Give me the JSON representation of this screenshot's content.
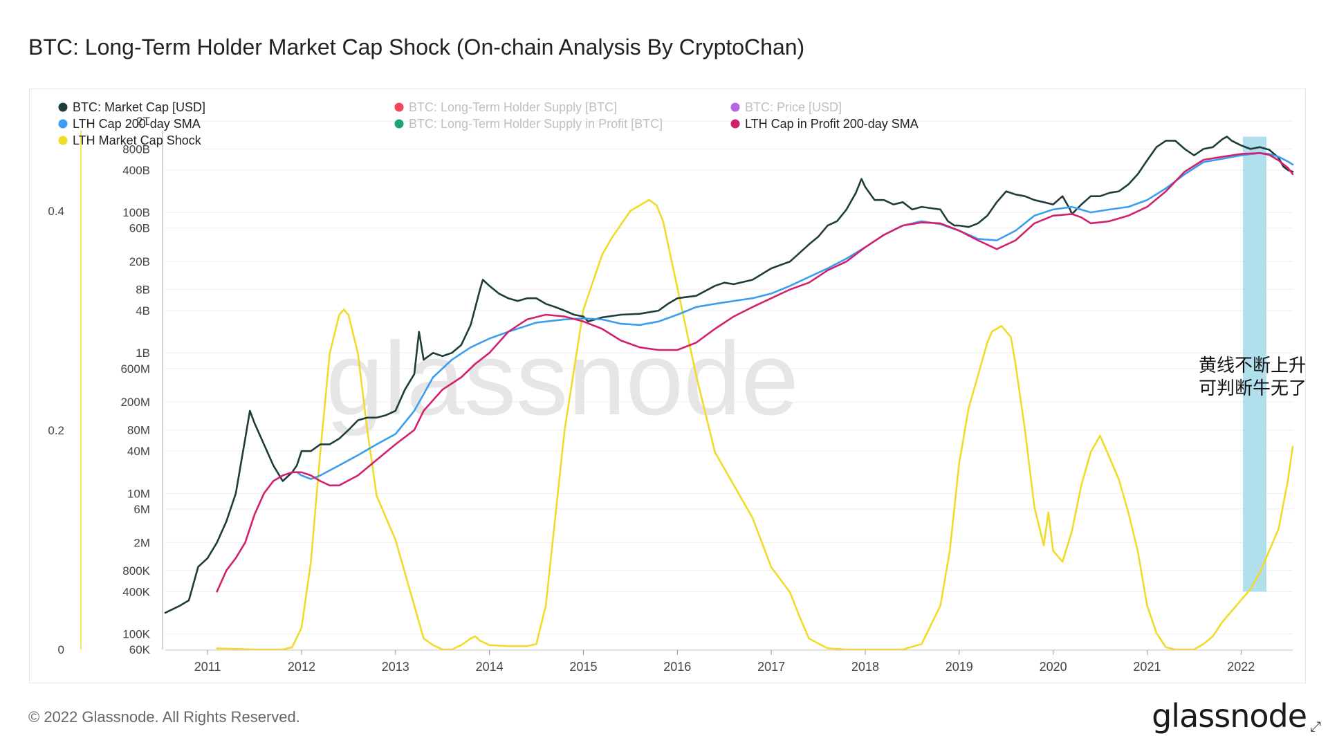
{
  "title": "BTC: Long-Term Holder Market Cap Shock (On-chain Analysis By CryptoChan)",
  "footer": "© 2022 Glassnode. All Rights Reserved.",
  "brand": "glassnode",
  "watermark": "glassnode",
  "annotation": {
    "line1": "黄线不断上升,",
    "line2": "可判断牛无了"
  },
  "legend": [
    {
      "label": "BTC: Market Cap [USD]",
      "color": "#1e3d3a",
      "active": true
    },
    {
      "label": "LTH Cap 200-day SMA",
      "color": "#3b9cf0",
      "active": true
    },
    {
      "label": "LTH Market Cap Shock",
      "color": "#f0dc28",
      "active": true
    },
    {
      "label": "BTC: Long-Term Holder Supply [BTC]",
      "color": "#f2465a",
      "active": false
    },
    {
      "label": "BTC: Long-Term Holder Supply in Profit [BTC]",
      "color": "#1ea56e",
      "active": false
    },
    {
      "label": "BTC: Price [USD]",
      "color": "#b466e6",
      "active": false
    },
    {
      "label": "LTH Cap in Profit 200-day SMA",
      "color": "#d3206e",
      "active": true
    }
  ],
  "chart_data": {
    "type": "line",
    "title": "BTC: Long-Term Holder Market Cap Shock (On-chain Analysis By CryptoChan)",
    "x_ticks": [
      2011,
      2012,
      2013,
      2014,
      2015,
      2016,
      2017,
      2018,
      2019,
      2020,
      2021,
      2022
    ],
    "x_range": [
      2010.55,
      2022.55
    ],
    "left_axis": {
      "scale": "linear",
      "ticks": [
        "0",
        "0.2",
        "0.4"
      ],
      "range": [
        0,
        0.41
      ]
    },
    "right_axis": {
      "scale": "log",
      "tick_labels": [
        "60K",
        "100K",
        "400K",
        "800K",
        "2M",
        "6M",
        "10M",
        "40M",
        "80M",
        "200M",
        "600M",
        "1B",
        "4B",
        "8B",
        "20B",
        "60B",
        "100B",
        "400B",
        "800B",
        "2T"
      ],
      "tick_values": [
        60000,
        100000,
        400000,
        800000,
        2000000,
        6000000,
        10000000,
        40000000,
        80000000,
        200000000,
        600000000,
        1000000000,
        4000000000,
        8000000000,
        20000000000,
        60000000000,
        100000000000,
        400000000000,
        800000000000,
        2000000000000
      ],
      "range": [
        60000,
        2000000000000
      ]
    },
    "highlight_band": {
      "x_start": 2022.02,
      "x_end": 2022.27,
      "value_low": 400000,
      "value_high": 1200000000000,
      "color": "#a8dcea"
    },
    "series": [
      {
        "name": "BTC: Market Cap [USD]",
        "axis": "right",
        "color": "#1e3d3a",
        "x": [
          2010.55,
          2010.7,
          2010.8,
          2010.9,
          2011.0,
          2011.1,
          2011.2,
          2011.3,
          2011.4,
          2011.45,
          2011.5,
          2011.6,
          2011.7,
          2011.8,
          2011.9,
          2011.95,
          2012.0,
          2012.1,
          2012.2,
          2012.3,
          2012.4,
          2012.5,
          2012.6,
          2012.7,
          2012.8,
          2012.9,
          2013.0,
          2013.1,
          2013.2,
          2013.25,
          2013.3,
          2013.4,
          2013.5,
          2013.6,
          2013.7,
          2013.8,
          2013.9,
          2013.93,
          2014.0,
          2014.1,
          2014.2,
          2014.3,
          2014.4,
          2014.5,
          2014.6,
          2014.7,
          2014.8,
          2014.9,
          2015.0,
          2015.05,
          2015.2,
          2015.4,
          2015.6,
          2015.8,
          2015.9,
          2016.0,
          2016.2,
          2016.4,
          2016.5,
          2016.6,
          2016.8,
          2017.0,
          2017.2,
          2017.4,
          2017.5,
          2017.6,
          2017.7,
          2017.8,
          2017.9,
          2017.96,
          2018.0,
          2018.1,
          2018.2,
          2018.3,
          2018.4,
          2018.5,
          2018.6,
          2018.7,
          2018.8,
          2018.88,
          2018.95,
          2019.0,
          2019.1,
          2019.2,
          2019.3,
          2019.4,
          2019.5,
          2019.6,
          2019.7,
          2019.8,
          2019.9,
          2020.0,
          2020.1,
          2020.18,
          2020.2,
          2020.3,
          2020.4,
          2020.5,
          2020.6,
          2020.7,
          2020.8,
          2020.9,
          2021.0,
          2021.1,
          2021.2,
          2021.3,
          2021.4,
          2021.5,
          2021.6,
          2021.7,
          2021.8,
          2021.85,
          2021.9,
          2022.0,
          2022.1,
          2022.2,
          2022.3,
          2022.4,
          2022.45,
          2022.5,
          2022.55
        ],
        "y": [
          200000,
          250000,
          300000,
          900000,
          1200000,
          2000000,
          4000000,
          10000000,
          60000000,
          150000000,
          100000000,
          50000000,
          25000000,
          15000000,
          20000000,
          25000000,
          40000000,
          40000000,
          50000000,
          50000000,
          60000000,
          80000000,
          110000000,
          120000000,
          120000000,
          130000000,
          150000000,
          300000000,
          500000000,
          2000000000,
          800000000,
          1000000000,
          900000000,
          1000000000,
          1300000000,
          2500000000,
          8000000000,
          11000000000,
          9000000000,
          7000000000,
          6000000000,
          5500000000,
          6000000000,
          6000000000,
          5000000000,
          4500000000,
          4000000000,
          3500000000,
          3300000000,
          2800000000,
          3200000000,
          3500000000,
          3600000000,
          4000000000,
          5000000000,
          6000000000,
          6500000000,
          9000000000,
          10000000000,
          9500000000,
          11000000000,
          16000000000,
          20000000000,
          35000000000,
          45000000000,
          65000000000,
          75000000000,
          110000000000,
          190000000000,
          300000000000,
          230000000000,
          150000000000,
          150000000000,
          130000000000,
          140000000000,
          110000000000,
          120000000000,
          115000000000,
          110000000000,
          75000000000,
          65000000000,
          65000000000,
          62000000000,
          70000000000,
          90000000000,
          140000000000,
          200000000000,
          180000000000,
          170000000000,
          150000000000,
          140000000000,
          130000000000,
          170000000000,
          110000000000,
          95000000000,
          130000000000,
          170000000000,
          170000000000,
          190000000000,
          200000000000,
          250000000000,
          350000000000,
          550000000000,
          850000000000,
          1050000000000,
          1050000000000,
          800000000000,
          650000000000,
          800000000000,
          850000000000,
          1100000000000,
          1200000000000,
          1050000000000,
          900000000000,
          800000000000,
          850000000000,
          780000000000,
          600000000000,
          450000000000,
          400000000000,
          380000000000
        ]
      },
      {
        "name": "LTH Cap 200-day SMA",
        "axis": "right",
        "color": "#3b9cf0",
        "x": [
          2011.95,
          2012.0,
          2012.1,
          2012.2,
          2012.4,
          2012.6,
          2012.8,
          2013.0,
          2013.2,
          2013.4,
          2013.6,
          2013.8,
          2014.0,
          2014.2,
          2014.5,
          2014.8,
          2015.0,
          2015.2,
          2015.4,
          2015.6,
          2015.8,
          2016.0,
          2016.2,
          2016.4,
          2016.6,
          2016.8,
          2017.0,
          2017.2,
          2017.4,
          2017.6,
          2017.8,
          2018.0,
          2018.2,
          2018.4,
          2018.6,
          2018.8,
          2019.0,
          2019.2,
          2019.4,
          2019.6,
          2019.8,
          2020.0,
          2020.2,
          2020.4,
          2020.6,
          2020.8,
          2021.0,
          2021.2,
          2021.4,
          2021.6,
          2021.8,
          2022.0,
          2022.2,
          2022.3,
          2022.4,
          2022.5,
          2022.55
        ],
        "y": [
          20000000,
          18000000,
          16000000,
          18000000,
          25000000,
          35000000,
          50000000,
          70000000,
          150000000,
          450000000,
          800000000,
          1200000000,
          1600000000,
          2000000000,
          2700000000,
          3000000000,
          3100000000,
          3000000000,
          2600000000,
          2500000000,
          2800000000,
          3500000000,
          4500000000,
          5000000000,
          5500000000,
          6000000000,
          7000000000,
          9000000000,
          12000000000,
          16000000000,
          22000000000,
          32000000000,
          48000000000,
          65000000000,
          75000000000,
          68000000000,
          55000000000,
          42000000000,
          40000000000,
          55000000000,
          90000000000,
          110000000000,
          120000000000,
          100000000000,
          110000000000,
          120000000000,
          150000000000,
          220000000000,
          350000000000,
          520000000000,
          580000000000,
          650000000000,
          700000000000,
          680000000000,
          620000000000,
          530000000000,
          480000000000
        ]
      },
      {
        "name": "LTH Cap in Profit 200-day SMA",
        "axis": "right",
        "color": "#d3206e",
        "x": [
          2011.1,
          2011.2,
          2011.3,
          2011.4,
          2011.5,
          2011.6,
          2011.7,
          2011.8,
          2011.9,
          2012.0,
          2012.1,
          2012.2,
          2012.3,
          2012.4,
          2012.6,
          2012.8,
          2013.0,
          2013.2,
          2013.3,
          2013.5,
          2013.7,
          2013.85,
          2014.0,
          2014.2,
          2014.4,
          2014.6,
          2014.8,
          2015.0,
          2015.2,
          2015.4,
          2015.6,
          2015.8,
          2016.0,
          2016.2,
          2016.4,
          2016.6,
          2016.8,
          2017.0,
          2017.2,
          2017.4,
          2017.6,
          2017.8,
          2018.0,
          2018.2,
          2018.4,
          2018.6,
          2018.8,
          2019.0,
          2019.2,
          2019.4,
          2019.6,
          2019.8,
          2020.0,
          2020.2,
          2020.3,
          2020.4,
          2020.6,
          2020.8,
          2021.0,
          2021.2,
          2021.4,
          2021.6,
          2021.8,
          2022.0,
          2022.2,
          2022.3,
          2022.4,
          2022.5,
          2022.55
        ],
        "y": [
          400000,
          800000,
          1200000,
          2000000,
          5000000,
          10000000,
          15000000,
          18000000,
          20000000,
          20000000,
          18000000,
          15000000,
          13000000,
          13000000,
          18000000,
          30000000,
          50000000,
          80000000,
          150000000,
          300000000,
          450000000,
          700000000,
          1000000000,
          2000000000,
          3000000000,
          3500000000,
          3300000000,
          2800000000,
          2200000000,
          1500000000,
          1200000000,
          1100000000,
          1100000000,
          1400000000,
          2200000000,
          3300000000,
          4500000000,
          6000000000,
          8000000000,
          10000000000,
          15000000000,
          20000000000,
          32000000000,
          48000000000,
          65000000000,
          72000000000,
          70000000000,
          55000000000,
          40000000000,
          30000000000,
          40000000000,
          70000000000,
          90000000000,
          95000000000,
          85000000000,
          70000000000,
          75000000000,
          90000000000,
          120000000000,
          200000000000,
          380000000000,
          560000000000,
          620000000000,
          680000000000,
          700000000000,
          660000000000,
          550000000000,
          430000000000,
          350000000000
        ]
      },
      {
        "name": "LTH Market Cap Shock",
        "axis": "left",
        "color": "#f0dc28",
        "x": [
          2011.1,
          2011.5,
          2011.8,
          2011.9,
          2012.0,
          2012.1,
          2012.2,
          2012.3,
          2012.4,
          2012.45,
          2012.5,
          2012.6,
          2012.7,
          2012.8,
          2013.0,
          2013.2,
          2013.3,
          2013.4,
          2013.5,
          2013.6,
          2013.7,
          2013.8,
          2013.85,
          2013.9,
          2014.0,
          2014.2,
          2014.4,
          2014.5,
          2014.6,
          2014.7,
          2014.8,
          2015.0,
          2015.2,
          2015.3,
          2015.5,
          2015.6,
          2015.7,
          2015.78,
          2015.85,
          2016.0,
          2016.2,
          2016.4,
          2016.6,
          2016.8,
          2017.0,
          2017.2,
          2017.3,
          2017.4,
          2017.6,
          2017.8,
          2018.0,
          2018.2,
          2018.4,
          2018.6,
          2018.8,
          2018.9,
          2019.0,
          2019.1,
          2019.2,
          2019.3,
          2019.35,
          2019.45,
          2019.55,
          2019.6,
          2019.7,
          2019.8,
          2019.9,
          2019.95,
          2020.0,
          2020.1,
          2020.2,
          2020.3,
          2020.4,
          2020.5,
          2020.6,
          2020.7,
          2020.8,
          2020.9,
          2021.0,
          2021.1,
          2021.2,
          2021.3,
          2021.4,
          2021.5,
          2021.6,
          2021.7,
          2021.8,
          2021.9,
          2022.0,
          2022.1,
          2022.2,
          2022.3,
          2022.4,
          2022.5,
          2022.55
        ],
        "y": [
          0.001,
          0.0,
          0.0,
          0.002,
          0.02,
          0.08,
          0.18,
          0.27,
          0.305,
          0.31,
          0.305,
          0.27,
          0.2,
          0.14,
          0.1,
          0.04,
          0.01,
          0.004,
          0.0,
          0.0,
          0.004,
          0.01,
          0.012,
          0.008,
          0.004,
          0.003,
          0.003,
          0.005,
          0.04,
          0.12,
          0.2,
          0.31,
          0.36,
          0.375,
          0.4,
          0.405,
          0.41,
          0.405,
          0.39,
          0.33,
          0.25,
          0.18,
          0.15,
          0.12,
          0.075,
          0.052,
          0.03,
          0.01,
          0.001,
          0.0,
          0.0,
          0.0,
          0.0,
          0.005,
          0.04,
          0.09,
          0.17,
          0.22,
          0.25,
          0.28,
          0.29,
          0.295,
          0.285,
          0.26,
          0.2,
          0.13,
          0.095,
          0.125,
          0.09,
          0.08,
          0.108,
          0.15,
          0.18,
          0.195,
          0.175,
          0.155,
          0.125,
          0.09,
          0.04,
          0.015,
          0.002,
          0.0,
          0.0,
          0.0,
          0.005,
          0.012,
          0.025,
          0.035,
          0.045,
          0.055,
          0.07,
          0.09,
          0.11,
          0.155,
          0.185
        ]
      }
    ]
  }
}
